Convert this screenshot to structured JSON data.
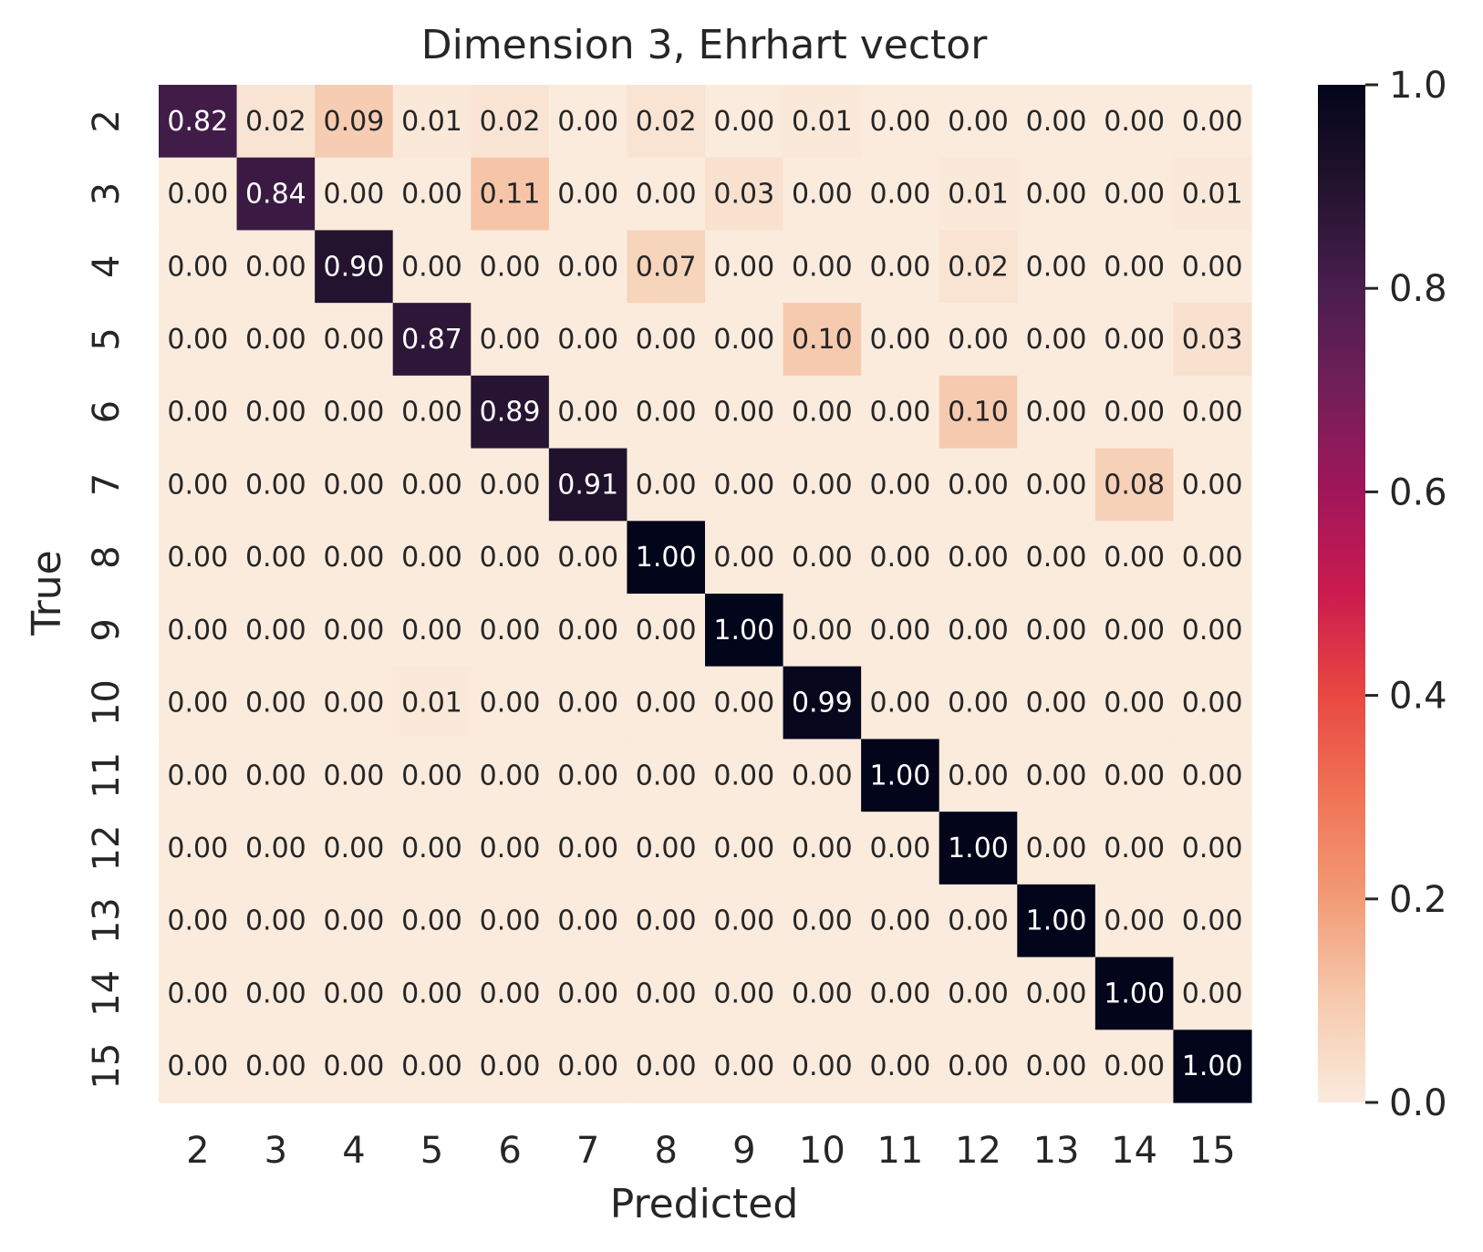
{
  "chart_data": {
    "type": "heatmap",
    "title": "Dimension 3, Ehrhart vector",
    "xlabel": "Predicted",
    "ylabel": "True",
    "x_categories": [
      "2",
      "3",
      "4",
      "5",
      "6",
      "7",
      "8",
      "9",
      "10",
      "11",
      "12",
      "13",
      "14",
      "15"
    ],
    "y_categories": [
      "2",
      "3",
      "4",
      "5",
      "6",
      "7",
      "8",
      "9",
      "10",
      "11",
      "12",
      "13",
      "14",
      "15"
    ],
    "values": [
      [
        0.82,
        0.02,
        0.09,
        0.01,
        0.02,
        0.0,
        0.02,
        0.0,
        0.01,
        0.0,
        0.0,
        0.0,
        0.0,
        0.0
      ],
      [
        0.0,
        0.84,
        0.0,
        0.0,
        0.11,
        0.0,
        0.0,
        0.03,
        0.0,
        0.0,
        0.01,
        0.0,
        0.0,
        0.01
      ],
      [
        0.0,
        0.0,
        0.9,
        0.0,
        0.0,
        0.0,
        0.07,
        0.0,
        0.0,
        0.0,
        0.02,
        0.0,
        0.0,
        0.0
      ],
      [
        0.0,
        0.0,
        0.0,
        0.87,
        0.0,
        0.0,
        0.0,
        0.0,
        0.1,
        0.0,
        0.0,
        0.0,
        0.0,
        0.03
      ],
      [
        0.0,
        0.0,
        0.0,
        0.0,
        0.89,
        0.0,
        0.0,
        0.0,
        0.0,
        0.0,
        0.1,
        0.0,
        0.0,
        0.0
      ],
      [
        0.0,
        0.0,
        0.0,
        0.0,
        0.0,
        0.91,
        0.0,
        0.0,
        0.0,
        0.0,
        0.0,
        0.0,
        0.08,
        0.0
      ],
      [
        0.0,
        0.0,
        0.0,
        0.0,
        0.0,
        0.0,
        1.0,
        0.0,
        0.0,
        0.0,
        0.0,
        0.0,
        0.0,
        0.0
      ],
      [
        0.0,
        0.0,
        0.0,
        0.0,
        0.0,
        0.0,
        0.0,
        1.0,
        0.0,
        0.0,
        0.0,
        0.0,
        0.0,
        0.0
      ],
      [
        0.0,
        0.0,
        0.0,
        0.01,
        0.0,
        0.0,
        0.0,
        0.0,
        0.99,
        0.0,
        0.0,
        0.0,
        0.0,
        0.0
      ],
      [
        0.0,
        0.0,
        0.0,
        0.0,
        0.0,
        0.0,
        0.0,
        0.0,
        0.0,
        1.0,
        0.0,
        0.0,
        0.0,
        0.0
      ],
      [
        0.0,
        0.0,
        0.0,
        0.0,
        0.0,
        0.0,
        0.0,
        0.0,
        0.0,
        0.0,
        1.0,
        0.0,
        0.0,
        0.0
      ],
      [
        0.0,
        0.0,
        0.0,
        0.0,
        0.0,
        0.0,
        0.0,
        0.0,
        0.0,
        0.0,
        0.0,
        1.0,
        0.0,
        0.0
      ],
      [
        0.0,
        0.0,
        0.0,
        0.0,
        0.0,
        0.0,
        0.0,
        0.0,
        0.0,
        0.0,
        0.0,
        0.0,
        1.0,
        0.0
      ],
      [
        0.0,
        0.0,
        0.0,
        0.0,
        0.0,
        0.0,
        0.0,
        0.0,
        0.0,
        0.0,
        0.0,
        0.0,
        0.0,
        1.0
      ]
    ],
    "value_format": "0.00",
    "colormap": "rocket_r",
    "colorbar": {
      "range": [
        0.0,
        1.0
      ],
      "ticks": [
        "0.0",
        "0.2",
        "0.4",
        "0.6",
        "0.8",
        "1.0"
      ],
      "placement": "right"
    },
    "grid": false
  }
}
